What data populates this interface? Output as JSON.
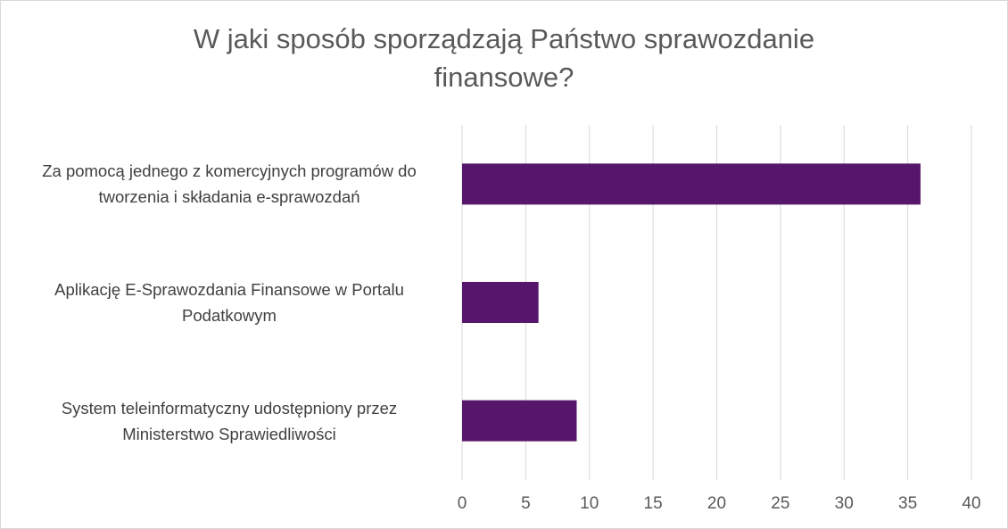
{
  "chart_data": {
    "type": "bar",
    "orientation": "horizontal",
    "title": "W jaki sposób sporządzają Państwo sprawozdanie finansowe?",
    "title_lines": [
      "W jaki sposób sporządzają Państwo sprawozdanie",
      "finansowe?"
    ],
    "categories": [
      "Za pomocą jednego z komercyjnych programów do tworzenia i składania e-sprawozdań",
      "Aplikację E-Sprawozdania Finansowe w Portalu Podatkowym",
      "System teleinformatyczny udostępniony przez Ministerstwo Sprawiedliwości"
    ],
    "category_lines": [
      [
        "Za pomocą jednego z komercyjnych programów do",
        "tworzenia i składania e-sprawozdań"
      ],
      [
        "Aplikację E-Sprawozdania Finansowe w Portalu",
        "Podatkowym"
      ],
      [
        "System teleinformatyczny udostępniony przez",
        "Ministerstwo Sprawiedliwości"
      ]
    ],
    "values": [
      36,
      6,
      9
    ],
    "xlim": [
      0,
      40
    ],
    "ticks": [
      "0",
      "5",
      "10",
      "15",
      "20",
      "25",
      "30",
      "35",
      "40"
    ],
    "grid": true,
    "legend": "none",
    "bar_color": "#56166B"
  }
}
